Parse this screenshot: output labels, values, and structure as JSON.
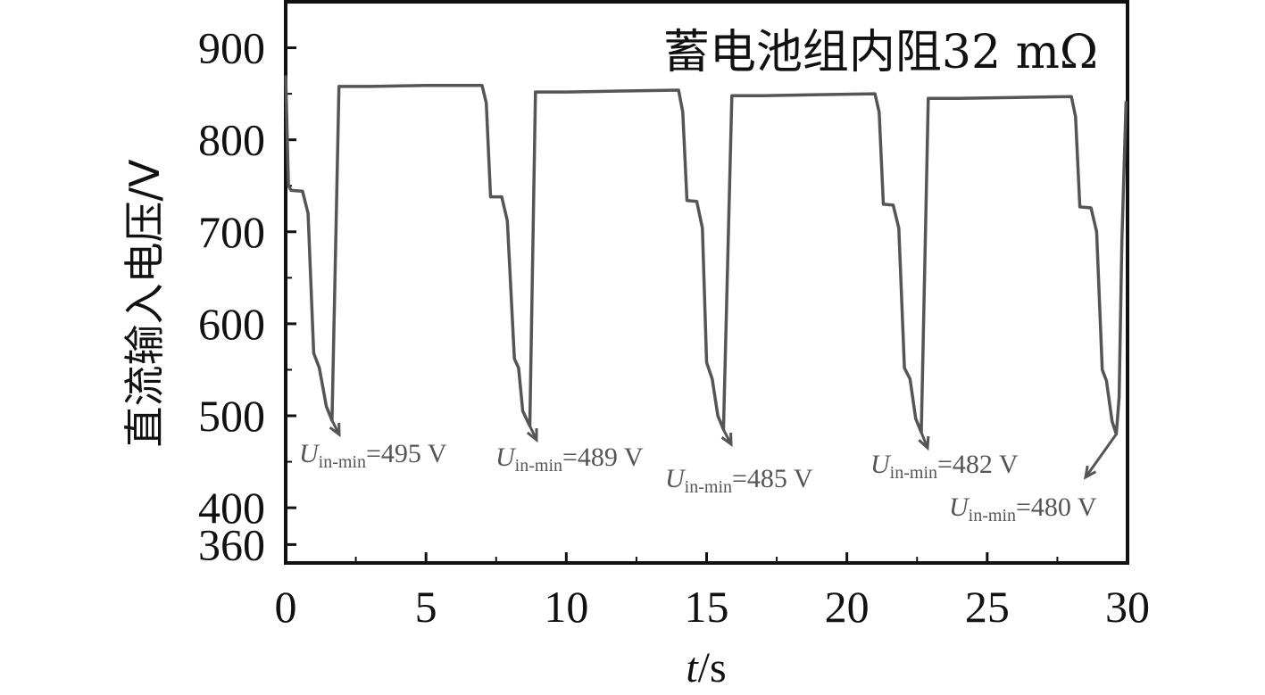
{
  "chart_data": {
    "type": "line",
    "title": "蓄电池组内阻32 mΩ",
    "xlabel_var": "t",
    "xlabel_unit": "/s",
    "ylabel": "直流输入电压/V",
    "xlim": [
      0,
      30
    ],
    "ylim": [
      340,
      950
    ],
    "x_ticks": [
      0,
      5,
      10,
      15,
      20,
      25,
      30
    ],
    "y_ticks": [
      360,
      400,
      500,
      600,
      700,
      800,
      900
    ],
    "grid": false,
    "series": [
      {
        "color": "#555555",
        "points": [
          [
            0,
            870
          ],
          [
            0.1,
            750
          ],
          [
            0.2,
            745
          ],
          [
            0.6,
            744
          ],
          [
            0.8,
            720
          ],
          [
            1.0,
            568
          ],
          [
            1.2,
            552
          ],
          [
            1.45,
            510
          ],
          [
            1.65,
            495
          ],
          [
            1.9,
            858
          ],
          [
            3.0,
            858
          ],
          [
            5.0,
            859
          ],
          [
            7.0,
            859
          ],
          [
            7.15,
            840
          ],
          [
            7.3,
            738
          ],
          [
            7.7,
            738
          ],
          [
            7.9,
            712
          ],
          [
            8.15,
            562
          ],
          [
            8.3,
            552
          ],
          [
            8.45,
            505
          ],
          [
            8.7,
            489
          ],
          [
            8.9,
            852
          ],
          [
            10.0,
            852
          ],
          [
            12.0,
            853
          ],
          [
            14.0,
            854
          ],
          [
            14.15,
            830
          ],
          [
            14.3,
            734
          ],
          [
            14.65,
            733
          ],
          [
            14.85,
            704
          ],
          [
            15.0,
            558
          ],
          [
            15.2,
            540
          ],
          [
            15.4,
            500
          ],
          [
            15.6,
            485
          ],
          [
            15.9,
            848
          ],
          [
            17.0,
            848
          ],
          [
            19.0,
            849
          ],
          [
            21.0,
            850
          ],
          [
            21.15,
            830
          ],
          [
            21.3,
            730
          ],
          [
            21.65,
            729
          ],
          [
            21.85,
            704
          ],
          [
            22.05,
            552
          ],
          [
            22.25,
            540
          ],
          [
            22.45,
            497
          ],
          [
            22.65,
            482
          ],
          [
            22.9,
            845
          ],
          [
            24.0,
            845
          ],
          [
            26.0,
            846
          ],
          [
            28.0,
            847
          ],
          [
            28.15,
            825
          ],
          [
            28.3,
            727
          ],
          [
            28.7,
            726
          ],
          [
            28.9,
            700
          ],
          [
            29.1,
            550
          ],
          [
            29.25,
            538
          ],
          [
            29.45,
            494
          ],
          [
            29.6,
            480
          ],
          [
            29.7,
            520
          ],
          [
            29.8,
            690
          ],
          [
            29.95,
            842
          ]
        ]
      }
    ],
    "annotations": [
      {
        "main": "U",
        "sub": "in-min",
        "text": "=495 V",
        "target": [
          1.65,
          495
        ]
      },
      {
        "main": "U",
        "sub": "in-min",
        "text": "=489 V",
        "target": [
          8.7,
          489
        ]
      },
      {
        "main": "U",
        "sub": "in-min",
        "text": "=485 V",
        "target": [
          15.6,
          485
        ]
      },
      {
        "main": "U",
        "sub": "in-min",
        "text": "=482 V",
        "target": [
          22.65,
          482
        ]
      },
      {
        "main": "U",
        "sub": "in-min",
        "text": "=480 V",
        "target": [
          29.6,
          480
        ]
      }
    ]
  }
}
